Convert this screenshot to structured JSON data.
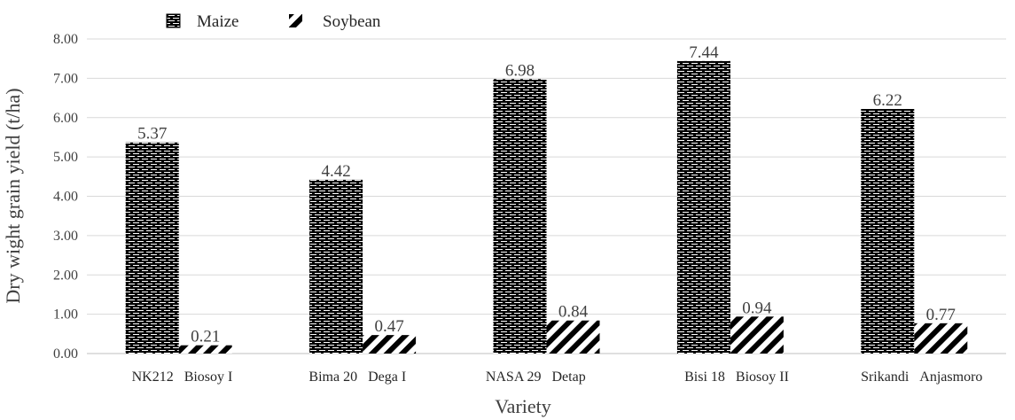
{
  "chart_data": {
    "type": "bar",
    "xlabel": "Variety",
    "ylabel": "Dry wight grain yield (t/ha)",
    "ylim": [
      0,
      8
    ],
    "yticks": [
      "0.00",
      "1.00",
      "2.00",
      "3.00",
      "4.00",
      "5.00",
      "6.00",
      "7.00",
      "8.00"
    ],
    "grid": true,
    "legend_position": "top-left",
    "groups": [
      {
        "maize_variety": "NK212",
        "soybean_variety": "Biosoy I"
      },
      {
        "maize_variety": "Bima 20",
        "soybean_variety": "Dega I"
      },
      {
        "maize_variety": "NASA 29",
        "soybean_variety": "Detap"
      },
      {
        "maize_variety": "Bisi 18",
        "soybean_variety": "Biosoy II"
      },
      {
        "maize_variety": "Srikandi",
        "soybean_variety": "Anjasmoro"
      }
    ],
    "series": [
      {
        "name": "Maize",
        "values": [
          5.37,
          4.42,
          6.98,
          7.44,
          6.22
        ],
        "labels": [
          "5.37",
          "4.42",
          "6.98",
          "7.44",
          "6.22"
        ],
        "pattern": "brick"
      },
      {
        "name": "Soybean",
        "values": [
          0.21,
          0.47,
          0.84,
          0.94,
          0.77
        ],
        "labels": [
          "0.21",
          "0.47",
          "0.84",
          "0.94",
          "0.77"
        ],
        "pattern": "diagonal-stripes"
      }
    ],
    "colors": {
      "bar": "#000000",
      "grid": "#d9d9d9",
      "text": "#404040"
    }
  }
}
